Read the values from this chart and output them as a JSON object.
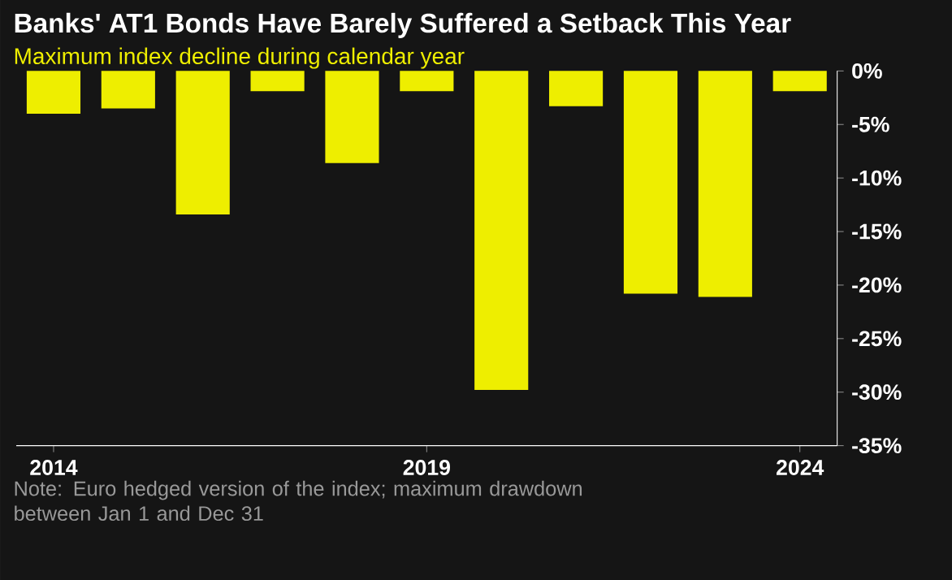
{
  "chart_data": {
    "type": "bar",
    "title": "Banks' AT1 Bonds Have Barely Suffered a Setback This Year",
    "subtitle": "Maximum index decline during calendar year",
    "x": [
      2014,
      2015,
      2016,
      2017,
      2018,
      2019,
      2020,
      2021,
      2022,
      2023,
      2024
    ],
    "values": [
      -4.0,
      -3.5,
      -13.4,
      -1.9,
      -8.6,
      -1.9,
      -29.8,
      -3.3,
      -20.8,
      -21.1,
      -1.9
    ],
    "color": "#eeee00",
    "xlim": [
      2013.5,
      2024.5
    ],
    "xticks": [
      2014,
      2019,
      2024
    ],
    "ylim": [
      -35,
      0
    ],
    "yticks": [
      {
        "value": -35,
        "label": "-35%"
      },
      {
        "value": -30,
        "label": "-30%"
      },
      {
        "value": -25,
        "label": "-25%"
      },
      {
        "value": -20,
        "label": "-20%"
      },
      {
        "value": -15,
        "label": "-15%"
      },
      {
        "value": -10,
        "label": "-10%"
      },
      {
        "value": -5,
        "label": "-5%"
      },
      {
        "value": 0,
        "label": "0%"
      }
    ],
    "annotations": [
      "Note: Euro hedged version of the index; maximum drawdown between Jan 1 and Dec 31"
    ]
  }
}
